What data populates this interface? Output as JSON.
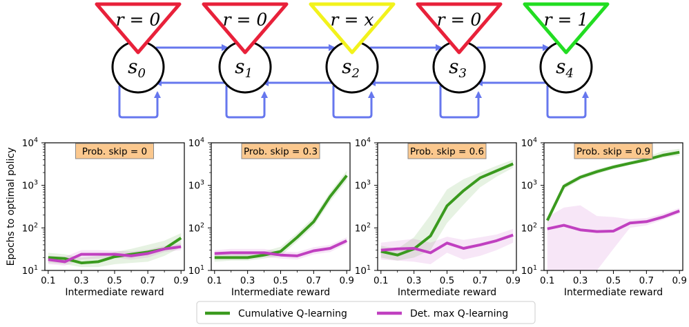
{
  "diagram": {
    "states": [
      {
        "label": "s",
        "sub": "0",
        "reward": "r = 0",
        "tri_color": "#e8213a"
      },
      {
        "label": "s",
        "sub": "1",
        "reward": "r = 0",
        "tri_color": "#e8213a"
      },
      {
        "label": "s",
        "sub": "2",
        "reward": "r = x",
        "tri_color": "#f2f21c"
      },
      {
        "label": "s",
        "sub": "3",
        "reward": "r = 0",
        "tri_color": "#e8213a"
      },
      {
        "label": "s",
        "sub": "4",
        "reward": "r = 1",
        "tri_color": "#22dd22"
      }
    ],
    "arrow_color": "#6677ee"
  },
  "axes": {
    "ylabel": "Epochs to optimal policy",
    "xlabel": "Intermediate reward",
    "xticks": [
      "0.1",
      "0.3",
      "0.5",
      "0.7",
      "0.9"
    ],
    "yticks": [
      {
        "base": "10",
        "exp": "1"
      },
      {
        "base": "10",
        "exp": "2"
      },
      {
        "base": "10",
        "exp": "3"
      },
      {
        "base": "10",
        "exp": "4"
      }
    ]
  },
  "legend": {
    "items": [
      {
        "label": "Cumulative Q-learning",
        "color": "#3a9a1e"
      },
      {
        "label": "Det. max Q-learning",
        "color": "#c040c0"
      }
    ]
  },
  "chart_data": [
    {
      "type": "line",
      "title": "Prob. skip = 0",
      "xlabel": "Intermediate reward",
      "ylabel": "Epochs to optimal policy",
      "yscale": "log",
      "xlim": [
        0.08,
        0.92
      ],
      "ylim": [
        10,
        10000
      ],
      "x": [
        0.1,
        0.2,
        0.3,
        0.4,
        0.5,
        0.6,
        0.7,
        0.8,
        0.9
      ],
      "series": [
        {
          "name": "Cumulative Q-learning",
          "values": [
            20,
            19,
            15,
            16,
            21,
            24,
            27,
            32,
            58
          ],
          "band_low": [
            15,
            14,
            12,
            12,
            14,
            15,
            16,
            22,
            35
          ],
          "band_high": [
            26,
            24,
            20,
            22,
            27,
            32,
            40,
            50,
            75
          ]
        },
        {
          "name": "Det. max Q-learning",
          "values": [
            18,
            16,
            24,
            24,
            24,
            22,
            25,
            32,
            36
          ],
          "band_low": [
            14,
            13,
            18,
            19,
            20,
            18,
            20,
            27,
            30
          ],
          "band_high": [
            22,
            21,
            30,
            30,
            29,
            28,
            31,
            38,
            43
          ]
        }
      ]
    },
    {
      "type": "line",
      "title": "Prob. skip = 0.3",
      "xlabel": "Intermediate reward",
      "yscale": "log",
      "xlim": [
        0.08,
        0.92
      ],
      "ylim": [
        10,
        10000
      ],
      "x": [
        0.1,
        0.2,
        0.3,
        0.4,
        0.5,
        0.6,
        0.7,
        0.8,
        0.9
      ],
      "series": [
        {
          "name": "Cumulative Q-learning",
          "values": [
            20,
            20,
            20,
            23,
            28,
            60,
            140,
            550,
            1700
          ],
          "band_low": [
            16,
            17,
            17,
            19,
            22,
            48,
            110,
            420,
            1300
          ],
          "band_high": [
            25,
            24,
            25,
            28,
            36,
            75,
            180,
            700,
            2200
          ]
        },
        {
          "name": "Det. max Q-learning",
          "values": [
            25,
            26,
            26,
            26,
            23,
            22,
            29,
            33,
            50
          ],
          "band_low": [
            20,
            21,
            21,
            21,
            19,
            18,
            24,
            27,
            42
          ],
          "band_high": [
            30,
            32,
            32,
            32,
            28,
            27,
            35,
            40,
            60
          ]
        }
      ]
    },
    {
      "type": "line",
      "title": "Prob. skip = 0.6",
      "xlabel": "Intermediate reward",
      "yscale": "log",
      "xlim": [
        0.08,
        0.92
      ],
      "ylim": [
        10,
        10000
      ],
      "x": [
        0.1,
        0.2,
        0.3,
        0.4,
        0.5,
        0.6,
        0.7,
        0.8,
        0.9
      ],
      "series": [
        {
          "name": "Cumulative Q-learning",
          "values": [
            28,
            23,
            32,
            65,
            330,
            750,
            1500,
            2200,
            3200
          ],
          "band_low": [
            20,
            17,
            20,
            30,
            130,
            350,
            900,
            1600,
            2600
          ],
          "band_high": [
            38,
            32,
            60,
            200,
            800,
            1400,
            2000,
            2900,
            4000
          ]
        },
        {
          "name": "Det. max Q-learning",
          "values": [
            30,
            32,
            33,
            26,
            44,
            33,
            40,
            50,
            68
          ],
          "band_low": [
            18,
            17,
            16,
            14,
            26,
            18,
            22,
            30,
            45
          ],
          "band_high": [
            45,
            50,
            55,
            45,
            62,
            52,
            60,
            70,
            95
          ]
        }
      ]
    },
    {
      "type": "line",
      "title": "Prob. skip = 0.9",
      "xlabel": "Intermediate reward",
      "yscale": "log",
      "xlim": [
        0.08,
        0.92
      ],
      "ylim": [
        10,
        10000
      ],
      "x": [
        0.1,
        0.2,
        0.3,
        0.4,
        0.5,
        0.6,
        0.7,
        0.8,
        0.9
      ],
      "series": [
        {
          "name": "Cumulative Q-learning",
          "values": [
            150,
            950,
            1550,
            2100,
            2700,
            3300,
            4000,
            5100,
            6000
          ],
          "band_low": [
            130,
            800,
            1350,
            1850,
            2400,
            3000,
            3600,
            4500,
            5000
          ],
          "band_high": [
            170,
            1100,
            1750,
            2400,
            3000,
            3700,
            4600,
            6400,
            7200
          ]
        },
        {
          "name": "Det. max Q-learning",
          "values": [
            95,
            115,
            90,
            82,
            84,
            130,
            140,
            180,
            250
          ],
          "band_low": [
            10,
            10,
            10,
            10,
            32,
            100,
            115,
            155,
            215
          ],
          "band_high": [
            180,
            300,
            340,
            190,
            180,
            160,
            170,
            215,
            295
          ]
        }
      ]
    }
  ]
}
